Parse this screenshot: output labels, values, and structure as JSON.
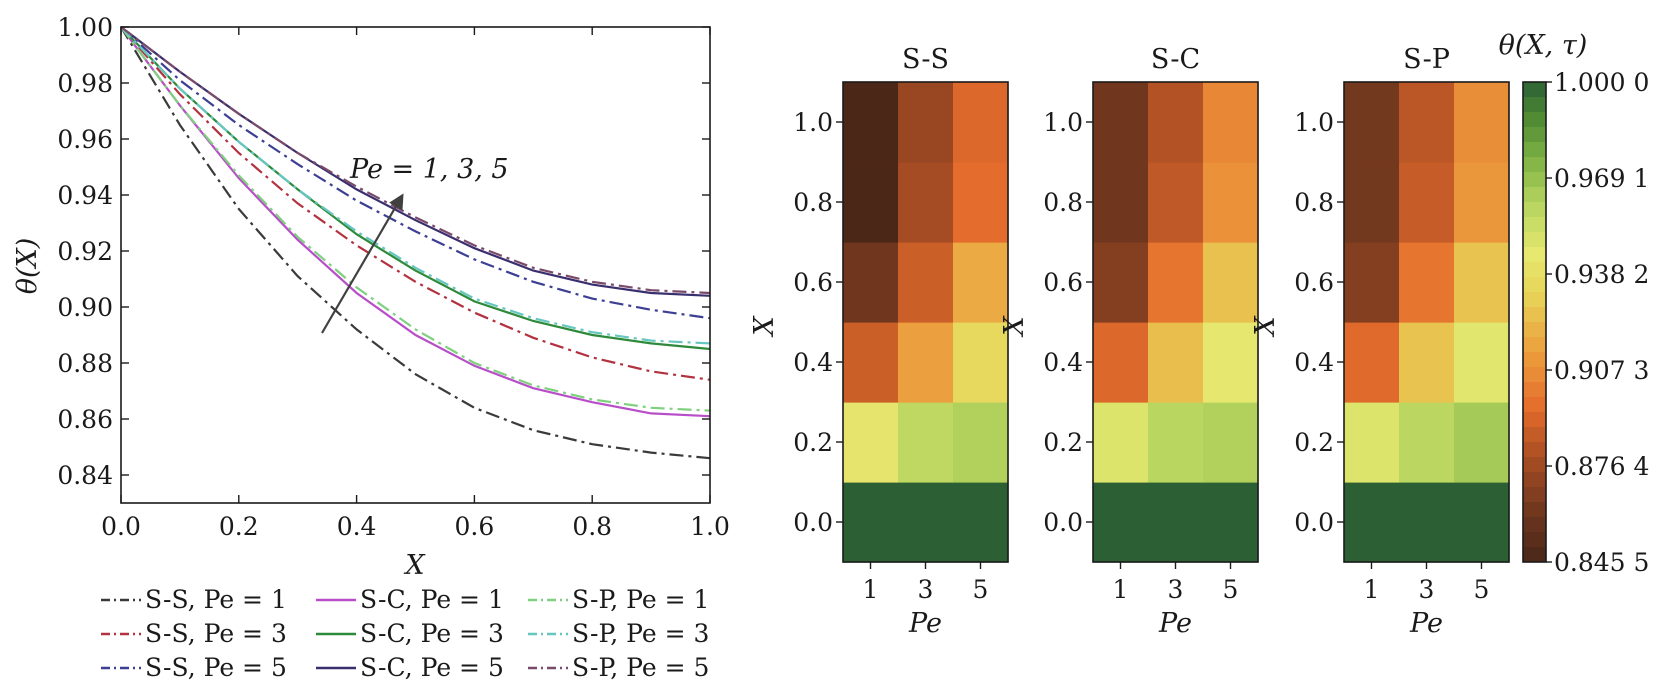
{
  "colors": {
    "ss1": "#3a3a3a",
    "ss3": "#b2323f",
    "ss5": "#3c3f93",
    "sc1": "#b84fc9",
    "sc3": "#2e8a3a",
    "sc5": "#3a2f6e",
    "sp1": "#7fd07f",
    "sp3": "#66c7c0",
    "sp5": "#7a4a6a",
    "arrow": "#404040"
  },
  "chart_data": [
    {
      "type": "line",
      "xlabel": "X",
      "ylabel": "θ(X)",
      "xlim": [
        0.0,
        1.0
      ],
      "ylim": [
        0.83,
        1.0
      ],
      "xticks": [
        "0.0",
        "0.2",
        "0.4",
        "0.6",
        "0.8",
        "1.0"
      ],
      "yticks": [
        "1.00",
        "0.98",
        "0.96",
        "0.94",
        "0.92",
        "0.90",
        "0.88",
        "0.86",
        "0.84"
      ],
      "annotation": "Pe = 1, 3, 5",
      "legend_position": "below",
      "x": [
        0.0,
        0.1,
        0.2,
        0.3,
        0.4,
        0.5,
        0.6,
        0.7,
        0.8,
        0.9,
        1.0
      ],
      "series": [
        {
          "name": "S-S, Pe = 1",
          "style": "dashdot",
          "color_key": "ss1",
          "values": [
            1.0,
            0.965,
            0.935,
            0.911,
            0.892,
            0.876,
            0.864,
            0.856,
            0.851,
            0.848,
            0.846
          ]
        },
        {
          "name": "S-S, Pe = 3",
          "style": "dashdot",
          "color_key": "ss3",
          "values": [
            1.0,
            0.976,
            0.955,
            0.937,
            0.922,
            0.909,
            0.898,
            0.889,
            0.882,
            0.877,
            0.874
          ]
        },
        {
          "name": "S-S, Pe = 5",
          "style": "dashdot",
          "color_key": "ss5",
          "values": [
            1.0,
            0.981,
            0.965,
            0.951,
            0.938,
            0.927,
            0.917,
            0.909,
            0.903,
            0.899,
            0.896
          ]
        },
        {
          "name": "S-C, Pe = 1",
          "style": "solid",
          "color_key": "sc1",
          "values": [
            1.0,
            0.972,
            0.946,
            0.924,
            0.905,
            0.89,
            0.879,
            0.871,
            0.866,
            0.862,
            0.861
          ]
        },
        {
          "name": "S-C, Pe = 3",
          "style": "solid",
          "color_key": "sc3",
          "values": [
            1.0,
            0.978,
            0.959,
            0.942,
            0.926,
            0.913,
            0.902,
            0.895,
            0.89,
            0.887,
            0.885
          ]
        },
        {
          "name": "S-C, Pe = 5",
          "style": "solid",
          "color_key": "sc5",
          "values": [
            1.0,
            0.984,
            0.969,
            0.955,
            0.942,
            0.931,
            0.921,
            0.913,
            0.908,
            0.905,
            0.904
          ]
        },
        {
          "name": "S-P, Pe = 1",
          "style": "dashdot",
          "color_key": "sp1",
          "values": [
            1.0,
            0.972,
            0.947,
            0.925,
            0.907,
            0.892,
            0.88,
            0.872,
            0.867,
            0.864,
            0.863
          ]
        },
        {
          "name": "S-P, Pe = 3",
          "style": "dashdot",
          "color_key": "sp3",
          "values": [
            1.0,
            0.978,
            0.959,
            0.942,
            0.927,
            0.914,
            0.903,
            0.896,
            0.891,
            0.888,
            0.887
          ]
        },
        {
          "name": "S-P, Pe = 5",
          "style": "dashdot",
          "color_key": "sp5",
          "values": [
            1.0,
            0.984,
            0.969,
            0.955,
            0.943,
            0.932,
            0.922,
            0.914,
            0.909,
            0.906,
            0.905
          ]
        }
      ]
    },
    {
      "type": "heatmap",
      "panels": [
        "S-S",
        "S-C",
        "S-P"
      ],
      "xlabel": "Pe",
      "ylabel": "X",
      "x_categories": [
        "1",
        "3",
        "5"
      ],
      "y_rows": [
        0.0,
        0.2,
        0.4,
        0.6,
        0.8,
        1.0
      ],
      "yticks": [
        "0.0",
        "0.2",
        "0.4",
        "0.6",
        "0.8",
        "1.0"
      ],
      "values": {
        "S-S": [
          [
            1.0,
            1.0,
            1.0
          ],
          [
            0.942,
            0.958,
            0.962
          ],
          [
            0.888,
            0.913,
            0.935
          ],
          [
            0.862,
            0.888,
            0.917
          ],
          [
            0.846,
            0.878,
            0.895
          ],
          [
            0.846,
            0.874,
            0.893
          ]
        ],
        "S-C": [
          [
            1.0,
            1.0,
            1.0
          ],
          [
            0.948,
            0.96,
            0.962
          ],
          [
            0.893,
            0.924,
            0.944
          ],
          [
            0.868,
            0.898,
            0.925
          ],
          [
            0.862,
            0.885,
            0.908
          ],
          [
            0.862,
            0.882,
            0.905
          ]
        ],
        "S-P": [
          [
            1.0,
            1.0,
            1.0
          ],
          [
            0.948,
            0.959,
            0.965
          ],
          [
            0.894,
            0.926,
            0.946
          ],
          [
            0.868,
            0.898,
            0.926
          ],
          [
            0.863,
            0.887,
            0.91
          ],
          [
            0.863,
            0.884,
            0.907
          ]
        ]
      },
      "colorbar": {
        "label": "θ(X, τ)",
        "min": 0.8455,
        "max": 1.0,
        "ticks": [
          "1.000 0",
          "0.969 1",
          "0.938 2",
          "0.907 3",
          "0.876 4",
          "0.845 5"
        ]
      }
    }
  ]
}
